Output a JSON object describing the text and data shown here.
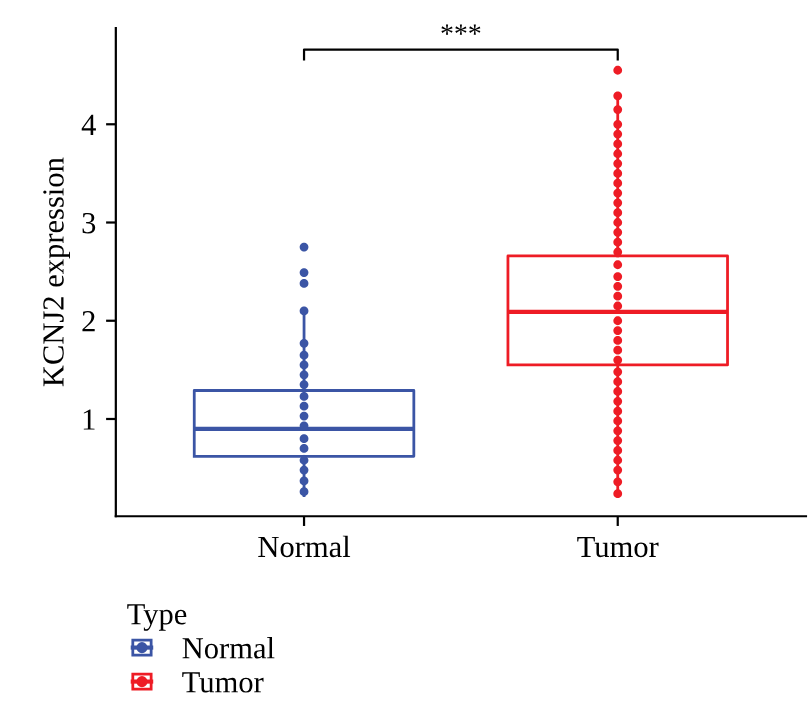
{
  "chart_data": {
    "type": "box",
    "ylabel": "KCNJ2 expression",
    "legend_title": "Type",
    "legend": "bottom",
    "annotations": [
      "***"
    ],
    "categories": [
      "Normal",
      "Tumor"
    ],
    "ylim": [
      0.01,
      4.98
    ],
    "yticks": [
      1,
      2,
      3,
      4
    ],
    "grid": false,
    "colors": [
      "#3b55a5",
      "#ee1c25"
    ],
    "boxes": [
      {
        "low": 0.22,
        "q1": 0.62,
        "median": 0.9,
        "q3": 1.29,
        "high": 2.1
      },
      {
        "low": 0.24,
        "q1": 1.55,
        "median": 2.09,
        "q3": 2.66,
        "high": 4.29
      }
    ],
    "series": [
      {
        "name": "Normal",
        "color": "#3b55a5",
        "type": "scatter",
        "marker": "circle",
        "x": [
          "Normal",
          "Normal",
          "Normal",
          "Normal",
          "Normal",
          "Normal",
          "Normal",
          "Normal",
          "Normal",
          "Normal",
          "Normal",
          "Normal",
          "Normal",
          "Normal",
          "Normal",
          "Normal",
          "Normal",
          "Normal",
          "Normal"
        ],
        "values": [
          2.75,
          2.49,
          2.38,
          2.1,
          1.77,
          1.65,
          1.55,
          1.45,
          1.35,
          1.23,
          1.13,
          1.03,
          0.93,
          0.8,
          0.7,
          0.58,
          0.48,
          0.37,
          0.26
        ]
      },
      {
        "name": "Tumor",
        "color": "#ee1c25",
        "type": "scatter",
        "marker": "circle",
        "x": [
          "Tumor",
          "Tumor",
          "Tumor",
          "Tumor",
          "Tumor",
          "Tumor",
          "Tumor",
          "Tumor",
          "Tumor",
          "Tumor",
          "Tumor",
          "Tumor",
          "Tumor",
          "Tumor",
          "Tumor",
          "Tumor",
          "Tumor",
          "Tumor",
          "Tumor",
          "Tumor",
          "Tumor",
          "Tumor",
          "Tumor",
          "Tumor",
          "Tumor",
          "Tumor",
          "Tumor",
          "Tumor",
          "Tumor",
          "Tumor",
          "Tumor",
          "Tumor",
          "Tumor",
          "Tumor",
          "Tumor",
          "Tumor",
          "Tumor",
          "Tumor",
          "Tumor",
          "Tumor"
        ],
        "values": [
          4.55,
          4.29,
          4.15,
          4.0,
          3.9,
          3.8,
          3.7,
          3.6,
          3.5,
          3.4,
          3.3,
          3.2,
          3.1,
          3.0,
          2.9,
          2.8,
          2.7,
          2.57,
          2.45,
          2.35,
          2.25,
          2.15,
          2.0,
          1.9,
          1.8,
          1.7,
          1.6,
          1.48,
          1.38,
          1.28,
          1.18,
          1.08,
          0.98,
          0.88,
          0.78,
          0.68,
          0.58,
          0.48,
          0.36,
          0.24
        ]
      }
    ]
  }
}
